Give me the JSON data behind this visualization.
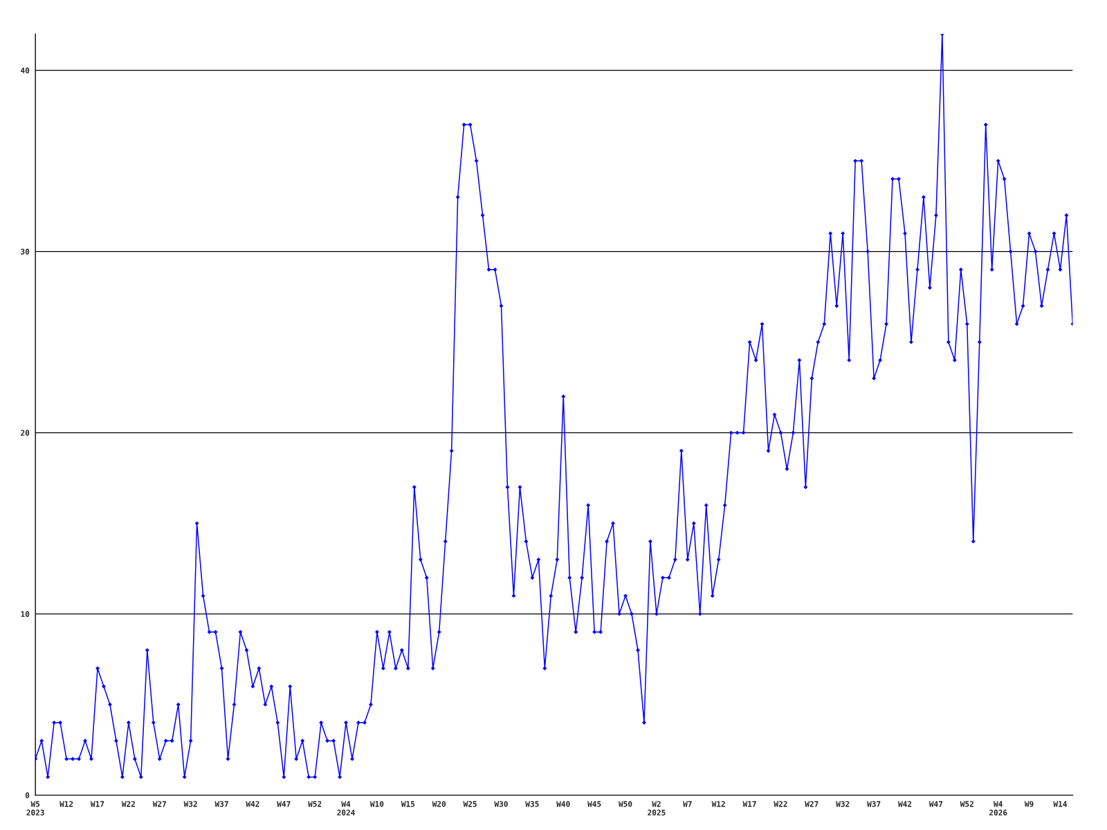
{
  "chart_data": {
    "type": "line",
    "categories": [
      "W5\n2023",
      null,
      null,
      null,
      null,
      "W12",
      null,
      null,
      null,
      null,
      "W17",
      null,
      null,
      null,
      null,
      "W22",
      null,
      null,
      null,
      null,
      "W27",
      null,
      null,
      null,
      null,
      "W32",
      null,
      null,
      null,
      null,
      "W37",
      null,
      null,
      null,
      null,
      "W42",
      null,
      null,
      null,
      null,
      "W47",
      null,
      null,
      null,
      null,
      "W52",
      null,
      null,
      null,
      null,
      "W4\n2024",
      null,
      null,
      null,
      null,
      "W10",
      null,
      null,
      null,
      null,
      "W15",
      null,
      null,
      null,
      null,
      "W20",
      null,
      null,
      null,
      null,
      "W25",
      null,
      null,
      null,
      null,
      "W30",
      null,
      null,
      null,
      null,
      "W35",
      null,
      null,
      null,
      null,
      "W40",
      null,
      null,
      null,
      null,
      "W45",
      null,
      null,
      null,
      null,
      "W50",
      null,
      null,
      null,
      null,
      "W2\n2025",
      null,
      null,
      null,
      null,
      "W7",
      null,
      null,
      null,
      null,
      "W12",
      null,
      null,
      null,
      null,
      "W17",
      null,
      null,
      null,
      null,
      "W22",
      null,
      null,
      null,
      null,
      "W27",
      null,
      null,
      null,
      null,
      "W32",
      null,
      null,
      null,
      null,
      "W37",
      null,
      null,
      null,
      null,
      "W42",
      null,
      null,
      null,
      null,
      "W47",
      null,
      null,
      null,
      null,
      "W52",
      null,
      null,
      null,
      null,
      "W4\n2026",
      null,
      null,
      null,
      null,
      "W9",
      null,
      null,
      null,
      null,
      "W14",
      null,
      null
    ],
    "series": [
      {
        "color": "#0000ff",
        "values": [
          2,
          3,
          1,
          4,
          4,
          2,
          2,
          2,
          3,
          2,
          7,
          6,
          5,
          3,
          1,
          4,
          2,
          1,
          8,
          4,
          2,
          3,
          3,
          5,
          1,
          3,
          15,
          11,
          9,
          9,
          7,
          2,
          5,
          9,
          8,
          6,
          7,
          5,
          6,
          4,
          1,
          6,
          2,
          3,
          1,
          1,
          4,
          3,
          3,
          1,
          4,
          2,
          4,
          4,
          5,
          9,
          7,
          9,
          7,
          8,
          7,
          17,
          13,
          12,
          7,
          9,
          14,
          19,
          33,
          37,
          37,
          35,
          32,
          29,
          29,
          27,
          17,
          11,
          17,
          14,
          12,
          13,
          7,
          11,
          13,
          22,
          12,
          9,
          12,
          16,
          9,
          9,
          14,
          15,
          10,
          11,
          10,
          8,
          4,
          14,
          10,
          12,
          12,
          13,
          19,
          13,
          15,
          10,
          16,
          11,
          13,
          16,
          20,
          20,
          20,
          25,
          24,
          26,
          19,
          21,
          20,
          18,
          20,
          24,
          17,
          23,
          25,
          26,
          31,
          27,
          31,
          24,
          35,
          35,
          30,
          23,
          24,
          26,
          34,
          34,
          31,
          25,
          29,
          33,
          28,
          32,
          42,
          25,
          24,
          29,
          26,
          14,
          25,
          37,
          29,
          35,
          34,
          30,
          26,
          27,
          31,
          30,
          27,
          29,
          31,
          29,
          32,
          26
        ]
      }
    ],
    "ylim": [
      0,
      42
    ],
    "yticks": [
      0,
      10,
      20,
      30,
      40
    ],
    "grid": "y",
    "marker": "diamond",
    "line_style": "solid"
  }
}
